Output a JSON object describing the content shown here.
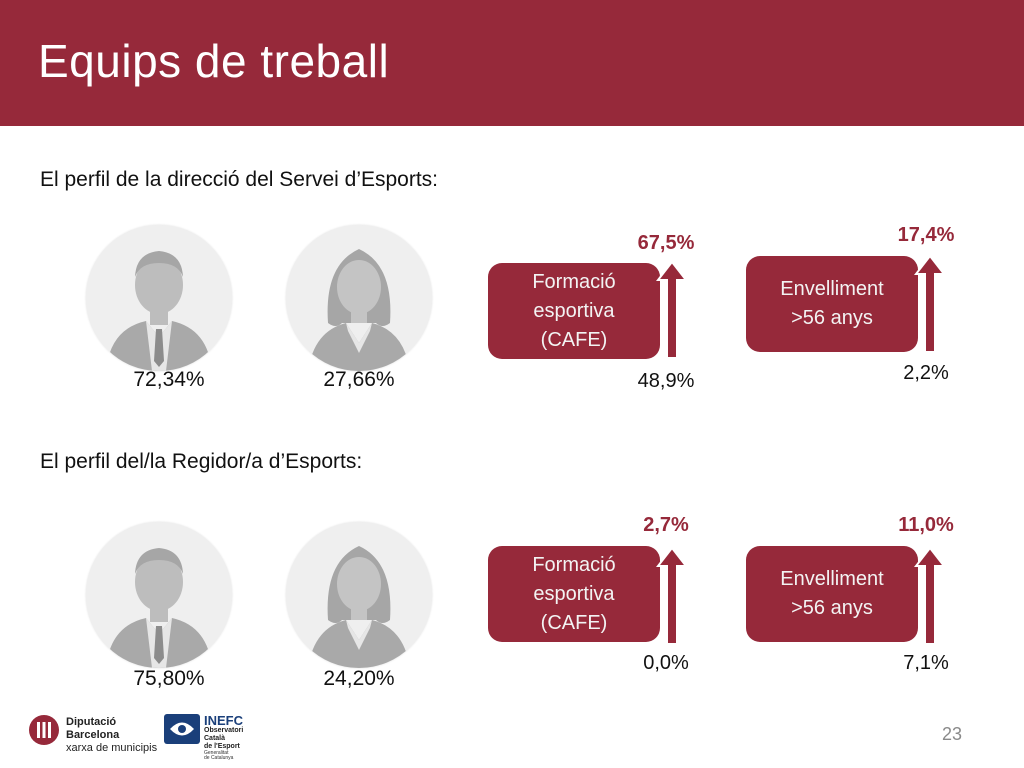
{
  "header": {
    "title": "Equips de treball"
  },
  "sections": [
    {
      "label": "El perfil de la direcció del Servei d’Esports:",
      "male_pct": "72,34%",
      "female_pct": "27,66%",
      "formacio": {
        "lines": [
          "Formació",
          "esportiva",
          "(CAFE)"
        ],
        "top": "67,5%",
        "bottom": "48,9%"
      },
      "envelliment": {
        "lines": [
          "Envelliment",
          ">56 anys"
        ],
        "top": "17,4%",
        "bottom": "2,2%"
      }
    },
    {
      "label": "El perfil del/la Regidor/a d’Esports:",
      "male_pct": "75,80%",
      "female_pct": "24,20%",
      "formacio": {
        "lines": [
          "Formació",
          "esportiva",
          "(CAFE)"
        ],
        "top": "2,7%",
        "bottom": "0,0%"
      },
      "envelliment": {
        "lines": [
          "Envelliment",
          ">56 anys"
        ],
        "top": "11,0%",
        "bottom": "7,1%"
      }
    }
  ],
  "footer": {
    "diputacio": {
      "line1": "Diputació",
      "line2": "Barcelona",
      "line3": "xarxa de municipis"
    },
    "inefc": {
      "line1": "INEFC",
      "line2": "Observatori",
      "line3": "Català",
      "line4": "de l'Esport",
      "line5": "Generalitat",
      "line6": "de Catalunya"
    },
    "page_number": "23"
  },
  "colors": {
    "brand": "#96293a",
    "avatar_gray": "#b9b9b9"
  }
}
